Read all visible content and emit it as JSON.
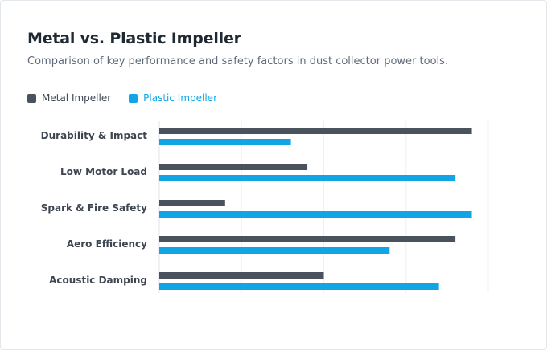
{
  "colors": {
    "metal": "#4a525d",
    "plastic": "#11a5e6",
    "grid": "#edf0f3",
    "axis": "#dfe3e8"
  },
  "chart_data": {
    "type": "bar",
    "orientation": "horizontal",
    "title": "Metal vs. Plastic Impeller",
    "subtitle": "Comparison of key performance and safety factors in dust collector power tools.",
    "categories": [
      "Durability & Impact",
      "Low Motor Load",
      "Spark & Fire Safety",
      "Aero Efficiency",
      "Acoustic Damping"
    ],
    "series": [
      {
        "name": "Metal Impeller",
        "values": [
          95,
          45,
          20,
          90,
          50
        ]
      },
      {
        "name": "Plastic Impeller",
        "values": [
          40,
          90,
          95,
          70,
          85
        ]
      }
    ],
    "xlim": [
      0,
      100
    ],
    "grid": true,
    "legend_position": "top-left"
  }
}
